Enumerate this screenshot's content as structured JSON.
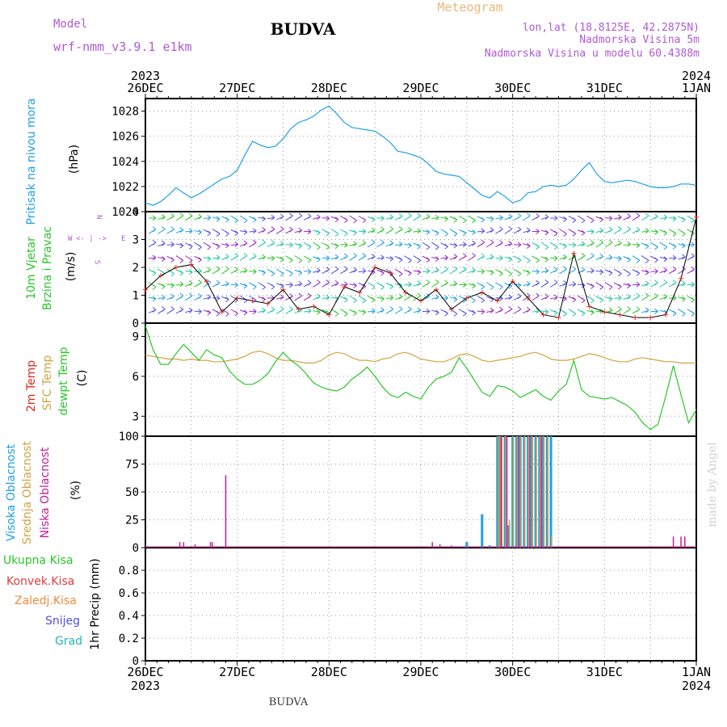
{
  "header": {
    "model_label": "Model",
    "model_name": "wrf-nmm_v3.9.1 e1km",
    "station": "BUDVA",
    "product": "Meteogram",
    "lonlat": "lon,lat (18.8125E, 42.2875N)",
    "elevation": "Nadmorska Visina 5m",
    "model_elevation": "Nadmorska Visina u modelu 60.4388m",
    "footer_station": "BUDVA",
    "watermark": "made by Angel"
  },
  "colors": {
    "pressure": "#1ea0e6",
    "temp_2m": "#e0281e",
    "sfc_temp": "#d4a240",
    "dewpt": "#28c828",
    "cloud_high": "#1ea0e6",
    "cloud_mid": "#d4a240",
    "cloud_low": "#c81e96",
    "wind_label": "#28c828",
    "precip_total": "#28c828",
    "precip_conv": "#e03c3c",
    "precip_frz": "#f08c3c",
    "precip_snow": "#5050e6",
    "precip_hail": "#28b4b4",
    "legend_purple": "#b05ad2",
    "grid": "#999999"
  },
  "time_axis": {
    "top_labels": [
      {
        "day": "26DEC",
        "year": "2023"
      },
      {
        "day": "27DEC",
        "year": ""
      },
      {
        "day": "28DEC",
        "year": ""
      },
      {
        "day": "29DEC",
        "year": ""
      },
      {
        "day": "30DEC",
        "year": ""
      },
      {
        "day": "31DEC",
        "year": ""
      },
      {
        "day": "1JAN",
        "year": "2024"
      }
    ]
  },
  "panels": {
    "pressure": {
      "label1": "Pritisak na nivou mora",
      "units": "(hPa)"
    },
    "wind": {
      "label1": "10m Vjetar",
      "label2": "Brzina i Pravac",
      "units": "(m/s)",
      "compass_w": "W",
      "compass_e": "E",
      "compass_n": "N",
      "compass_s": "S",
      "compass_arrows": "<- | ->"
    },
    "temp": {
      "label1": "2m Temp",
      "label2": "SFC Temp",
      "label3": "dewpt Temp",
      "units": "(C)"
    },
    "cloud": {
      "label1": "Visoka Oblacnost",
      "label2": "Srednja Oblacnost",
      "label3": "Niska Oblacnost",
      "units": "(%)"
    },
    "precip": {
      "label_total": "Ukupna Kisa",
      "label_conv": "Konvek.Kisa",
      "label_frz": "Zaledj.Kisa",
      "label_snow": "Snijeg",
      "label_hail": "Grad",
      "units": "1hr Precip (mm)"
    }
  },
  "chart_data": [
    {
      "type": "line",
      "name": "pressure",
      "ylabel": "(hPa)",
      "ylim": [
        1020,
        1029
      ],
      "yticks": [
        1020,
        1022,
        1024,
        1026,
        1028
      ],
      "x_unit": "hours from 26DEC 00UTC",
      "xlim": [
        0,
        144
      ],
      "x": [
        0,
        2,
        4,
        6,
        8,
        10,
        12,
        14,
        16,
        18,
        20,
        22,
        24,
        26,
        28,
        30,
        32,
        34,
        36,
        38,
        40,
        42,
        44,
        46,
        48,
        50,
        52,
        54,
        56,
        58,
        60,
        62,
        64,
        66,
        68,
        70,
        72,
        74,
        76,
        78,
        80,
        82,
        84,
        86,
        88,
        90,
        92,
        94,
        96,
        98,
        100,
        102,
        104,
        106,
        108,
        110,
        112,
        114,
        116,
        118,
        120,
        122,
        124,
        126,
        128,
        130,
        132,
        134,
        136,
        138,
        140,
        142,
        144
      ],
      "values": [
        1020.7,
        1020.5,
        1020.8,
        1021.3,
        1021.9,
        1021.5,
        1021.1,
        1021.4,
        1021.8,
        1022.2,
        1022.6,
        1022.8,
        1023.3,
        1024.5,
        1025.6,
        1025.3,
        1025.1,
        1025.2,
        1025.8,
        1026.6,
        1027.1,
        1027.3,
        1027.6,
        1028.1,
        1028.4,
        1027.8,
        1027.1,
        1026.7,
        1026.6,
        1026.5,
        1026.4,
        1026.0,
        1025.5,
        1024.8,
        1024.7,
        1024.5,
        1024.3,
        1023.8,
        1023.2,
        1023.0,
        1022.9,
        1022.8,
        1022.3,
        1021.8,
        1021.3,
        1021.1,
        1021.6,
        1021.2,
        1020.7,
        1020.9,
        1021.5,
        1021.6,
        1022.0,
        1022.1,
        1022.0,
        1022.1,
        1022.6,
        1023.3,
        1023.9,
        1023.0,
        1022.4,
        1022.3,
        1022.4,
        1022.5,
        1022.4,
        1022.2,
        1022.0,
        1021.9,
        1021.9,
        1022.0,
        1022.2,
        1022.2,
        1022.1
      ]
    },
    {
      "type": "line",
      "name": "temperature",
      "ylabel": "(C)",
      "ylim": [
        1.5,
        10.0
      ],
      "yticks": [
        3,
        6,
        9
      ],
      "x_unit": "hours from 26DEC 00UTC",
      "xlim": [
        0,
        144
      ],
      "x": [
        0,
        2,
        4,
        6,
        8,
        10,
        12,
        14,
        16,
        18,
        20,
        22,
        24,
        26,
        28,
        30,
        32,
        34,
        36,
        38,
        40,
        42,
        44,
        46,
        48,
        50,
        52,
        54,
        56,
        58,
        60,
        62,
        64,
        66,
        68,
        70,
        72,
        74,
        76,
        78,
        80,
        82,
        84,
        86,
        88,
        90,
        92,
        94,
        96,
        98,
        100,
        102,
        104,
        106,
        108,
        110,
        112,
        114,
        116,
        118,
        120,
        122,
        124,
        126,
        128,
        130,
        132,
        134,
        136,
        138,
        140,
        142,
        144
      ],
      "series": [
        {
          "name": "SFC Temp",
          "values": [
            7.6,
            7.5,
            7.4,
            7.3,
            7.3,
            7.2,
            7.3,
            7.2,
            7.2,
            7.1,
            7.1,
            7.2,
            7.3,
            7.5,
            7.8,
            7.9,
            7.7,
            7.4,
            7.2,
            7.2,
            7.1,
            7.0,
            7.0,
            7.2,
            7.6,
            7.8,
            7.7,
            7.4,
            7.2,
            7.2,
            7.1,
            7.3,
            7.4,
            7.7,
            7.8,
            7.6,
            7.3,
            7.2,
            7.1,
            7.1,
            7.3,
            7.6,
            7.7,
            7.5,
            7.2,
            7.1,
            7.2,
            7.3,
            7.4,
            7.5,
            7.7,
            7.8,
            7.6,
            7.3,
            7.2,
            7.2,
            7.3,
            7.5,
            7.7,
            7.6,
            7.4,
            7.2,
            7.1,
            7.1,
            7.3,
            7.4,
            7.3,
            7.2,
            7.1,
            7.1,
            7.0,
            7.0,
            7.0
          ]
        },
        {
          "name": "dewpt Temp",
          "values": [
            9.8,
            8.0,
            6.9,
            6.9,
            7.7,
            8.4,
            7.8,
            7.2,
            8.0,
            7.6,
            7.4,
            6.4,
            5.8,
            5.4,
            5.4,
            5.7,
            6.2,
            7.1,
            7.8,
            7.2,
            6.8,
            6.2,
            5.5,
            5.2,
            5.0,
            4.9,
            5.2,
            5.8,
            6.2,
            6.7,
            6.0,
            5.2,
            4.6,
            4.4,
            4.8,
            4.5,
            4.3,
            5.2,
            5.8,
            6.0,
            6.3,
            7.4,
            6.6,
            5.7,
            4.8,
            4.5,
            5.3,
            5.2,
            4.9,
            4.4,
            4.7,
            5.0,
            4.5,
            4.2,
            4.9,
            5.4,
            7.2,
            5.0,
            4.5,
            4.4,
            4.3,
            4.4,
            4.1,
            3.8,
            3.3,
            2.5,
            2.0,
            2.4,
            4.5,
            6.8,
            4.6,
            2.5,
            3.5
          ]
        }
      ]
    },
    {
      "type": "bar",
      "name": "cloud cover",
      "ylabel": "(%)",
      "ylim": [
        0,
        100
      ],
      "yticks": [
        0,
        25,
        50,
        75,
        100
      ],
      "x_unit": "hours from 26DEC 00UTC",
      "xlim": [
        0,
        144
      ],
      "series": [
        {
          "name": "Visoka Oblacnost",
          "x": [
            84,
            88,
            90,
            92,
            92.5,
            93,
            94,
            95,
            96,
            97,
            98,
            99,
            100,
            101,
            102,
            103,
            104,
            105,
            106
          ],
          "values": [
            5,
            30,
            2,
            100,
            100,
            100,
            100,
            20,
            100,
            100,
            100,
            100,
            100,
            100,
            100,
            100,
            100,
            100,
            100
          ]
        },
        {
          "name": "Srednja Oblacnost",
          "x": [
            92.2,
            92.7,
            93.2,
            94.2,
            95.2,
            96.2,
            97.2,
            98.2,
            99.2,
            100.2,
            101.2,
            102.2,
            103.2,
            104.2,
            105.2,
            106.2
          ],
          "values": [
            100,
            100,
            100,
            100,
            25,
            100,
            100,
            100,
            100,
            100,
            100,
            100,
            100,
            100,
            100,
            10
          ]
        },
        {
          "name": "Niska Oblacnost",
          "x": [
            9,
            10,
            13,
            17,
            17.5,
            21,
            75,
            77,
            80,
            93,
            94.5,
            97.5,
            100.5,
            103.5,
            138,
            140,
            141
          ],
          "values": [
            5,
            5,
            3,
            5,
            5,
            65,
            5,
            3,
            2,
            100,
            100,
            100,
            100,
            100,
            10,
            10,
            10
          ]
        }
      ]
    },
    {
      "type": "bar",
      "name": "precipitation",
      "ylabel": "1hr Precip (mm)",
      "ylim": [
        0,
        1.0
      ],
      "yticks": [
        0,
        0.2,
        0.4,
        0.6,
        0.8
      ],
      "x_unit": "hours from 26DEC 00UTC",
      "xlim": [
        0,
        144
      ],
      "series": [
        {
          "name": "Ukupna Kisa",
          "x": [],
          "values": []
        },
        {
          "name": "Konvek.Kisa",
          "x": [],
          "values": []
        },
        {
          "name": "Zaledj.Kisa",
          "x": [],
          "values": []
        },
        {
          "name": "Snijeg",
          "x": [],
          "values": []
        },
        {
          "name": "Grad",
          "x": [],
          "values": []
        }
      ]
    },
    {
      "type": "line",
      "name": "wind",
      "ylabel": "(m/s)",
      "ylim": [
        0,
        4
      ],
      "yticks": [
        0,
        1,
        2,
        3,
        4
      ],
      "x_unit": "hours from 26DEC 00UTC",
      "xlim": [
        0,
        144
      ],
      "x": [
        0,
        4,
        8,
        12,
        16,
        20,
        24,
        28,
        32,
        36,
        40,
        44,
        48,
        52,
        56,
        60,
        64,
        68,
        72,
        76,
        80,
        84,
        88,
        92,
        96,
        100,
        104,
        108,
        112,
        116,
        120,
        124,
        128,
        132,
        136,
        140,
        144
      ],
      "values": [
        1.2,
        1.7,
        2.0,
        2.1,
        1.5,
        0.4,
        0.9,
        0.8,
        0.7,
        1.2,
        0.5,
        0.6,
        0.3,
        1.3,
        1.1,
        2.0,
        1.8,
        1.1,
        0.8,
        1.2,
        0.5,
        0.9,
        1.1,
        0.8,
        1.5,
        0.9,
        0.3,
        0.2,
        2.5,
        0.6,
        0.4,
        0.3,
        0.2,
        0.2,
        0.3,
        1.6,
        3.8
      ]
    }
  ]
}
